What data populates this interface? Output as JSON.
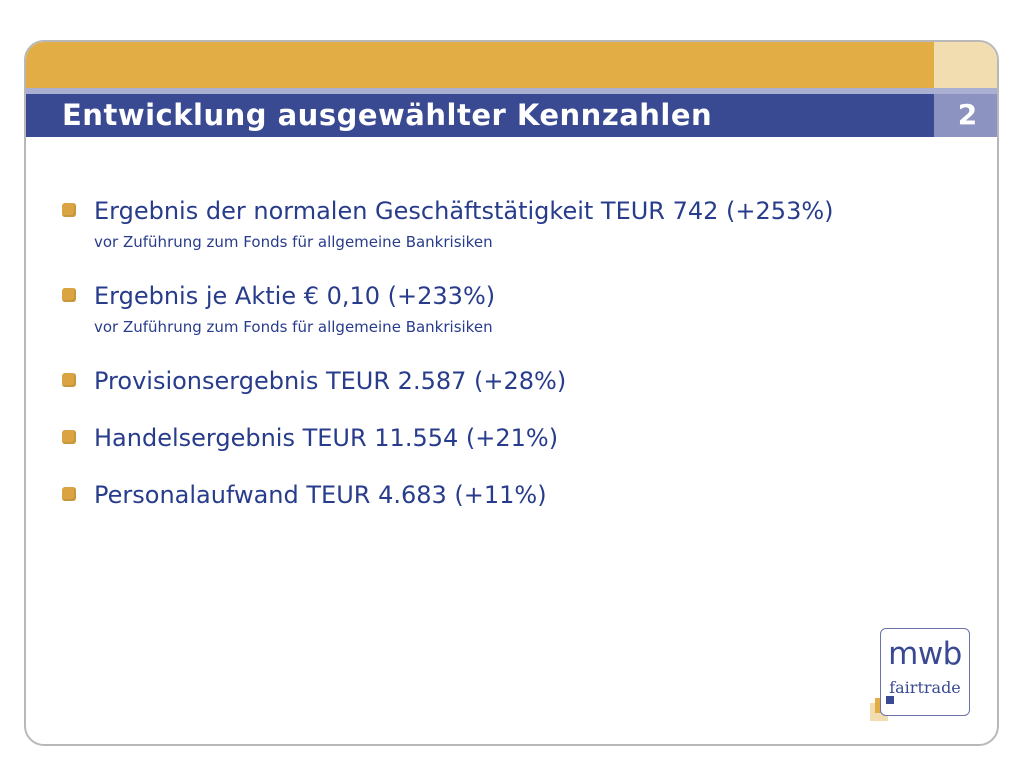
{
  "slide": {
    "title": "Entwicklung ausgewählter Kennzahlen",
    "page_number": "2"
  },
  "bullets": [
    {
      "main": "Ergebnis der normalen Geschäftstätigkeit TEUR 742 (+253%)",
      "sub": "vor Zuführung zum Fonds für allgemeine Bankrisiken"
    },
    {
      "main": "Ergebnis je Aktie € 0,10 (+233%)",
      "sub": "vor Zuführung zum Fonds für allgemeine Bankrisiken"
    },
    {
      "main": "Provisionsergebnis TEUR 2.587  (+28%)"
    },
    {
      "main": "Handelsergebnis TEUR 11.554 (+21%)"
    },
    {
      "main": "Personalaufwand TEUR 4.683 (+11%)"
    }
  ],
  "logo": {
    "line1": "mwb",
    "line2": "fairtrade"
  },
  "colors": {
    "gold": "#e2ad45",
    "navy": "#3a4a92",
    "text": "#283c8c"
  }
}
